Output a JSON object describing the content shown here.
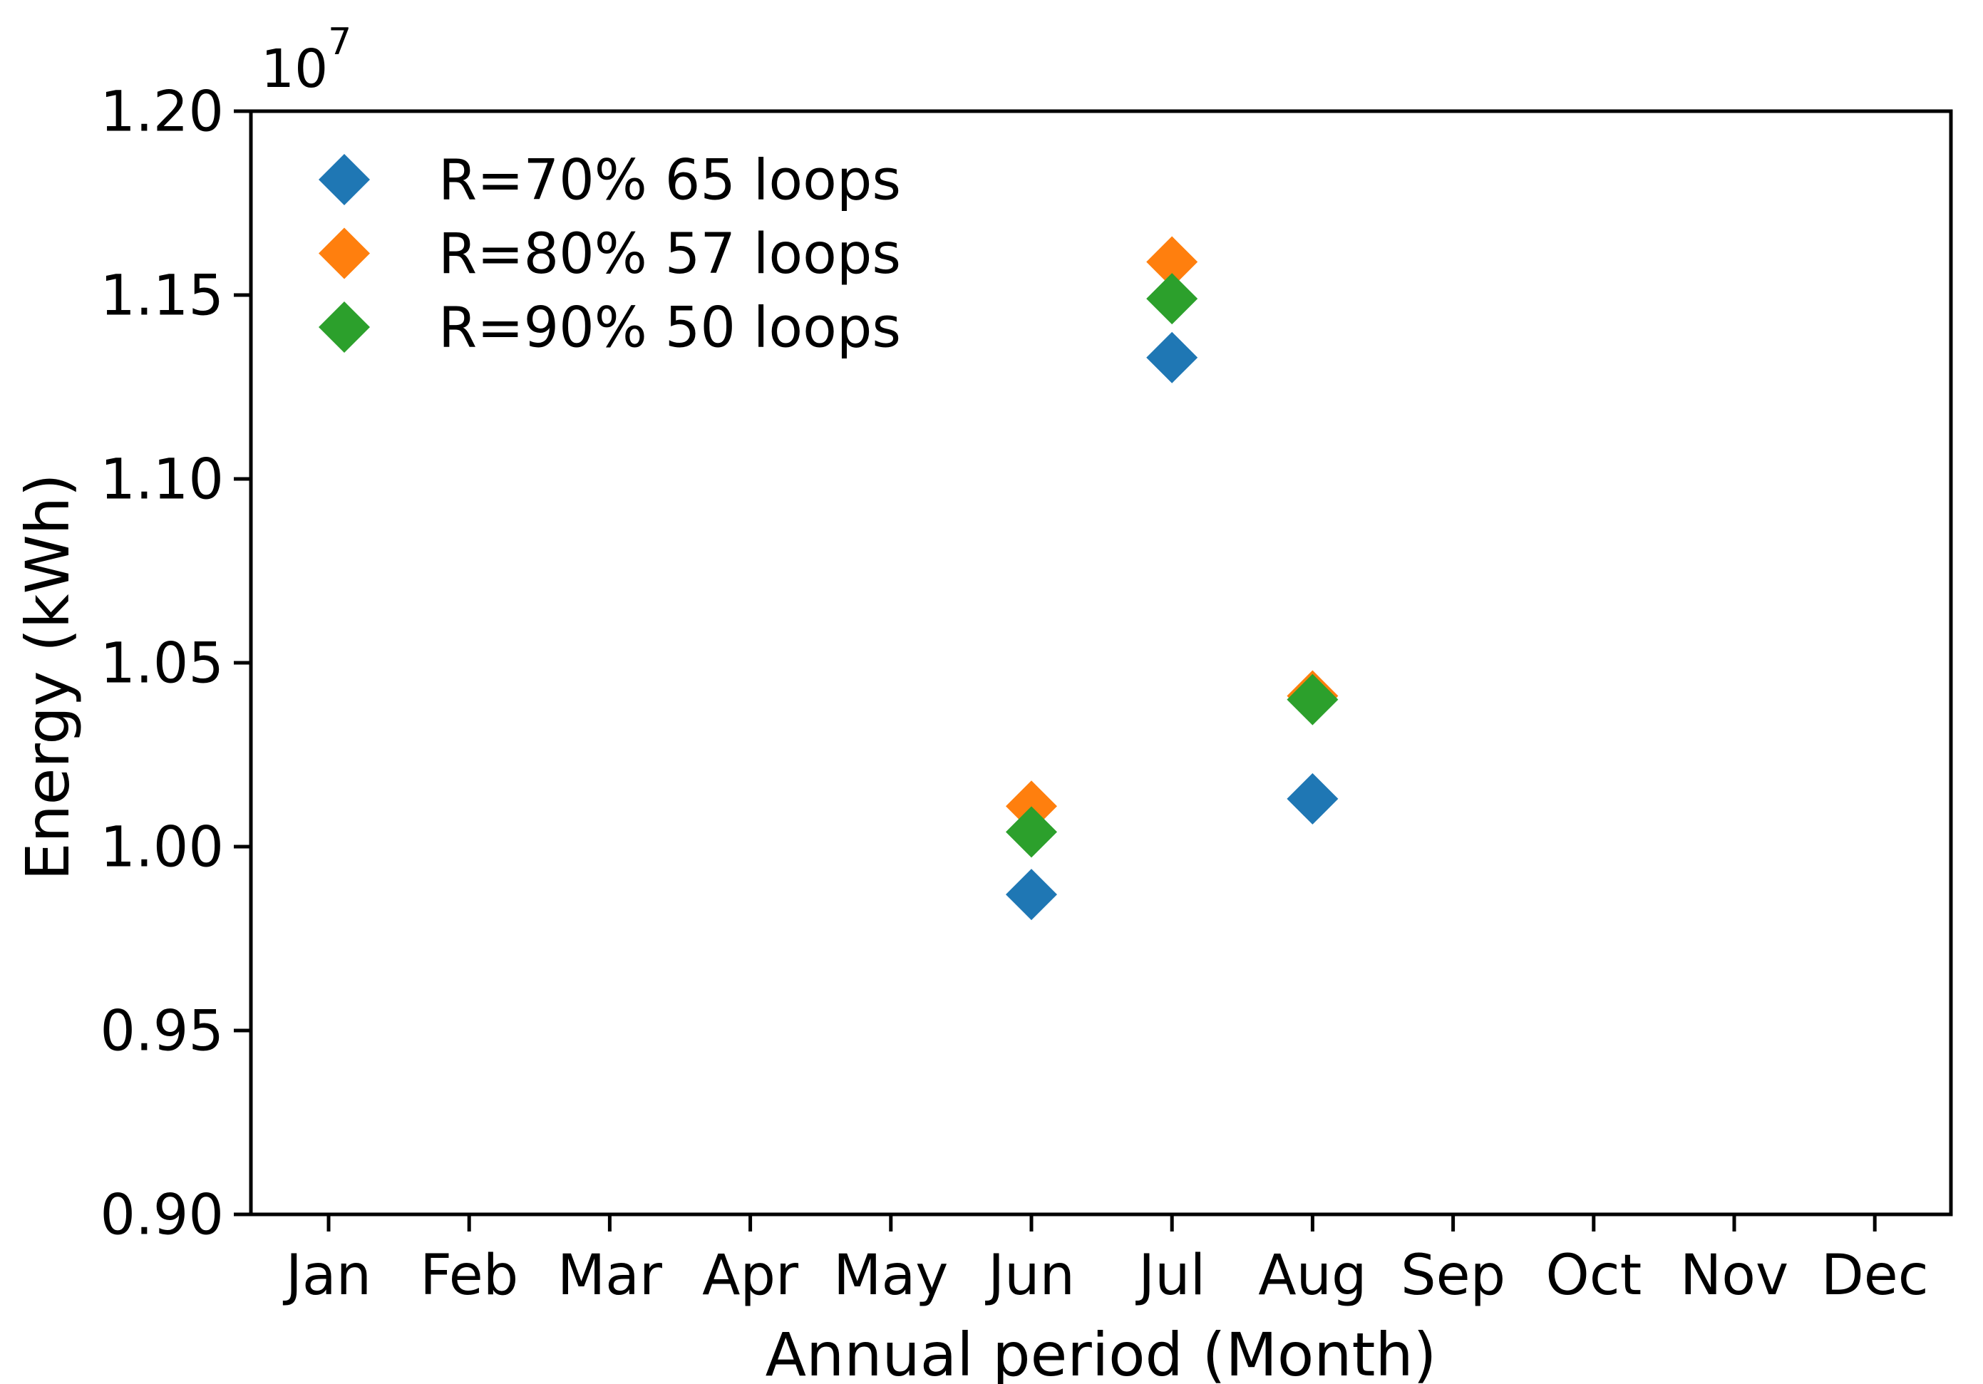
{
  "figure": {
    "background": "#ffffff",
    "description": "Scatter plot of monthly energy for three recovery-ratio cases"
  },
  "chart_data": {
    "type": "scatter",
    "title": "",
    "xlabel": "Annual period (Month)",
    "ylabel": "Energy (kWh)",
    "offset_base": "10",
    "offset_exponent": "7",
    "value_units": "values are in units of 10^7 kWh",
    "categories": [
      "Jan",
      "Feb",
      "Mar",
      "Apr",
      "May",
      "Jun",
      "Jul",
      "Aug",
      "Sep",
      "Oct",
      "Nov",
      "Dec"
    ],
    "ytick_labels": [
      "0.90",
      "0.95",
      "1.00",
      "1.05",
      "1.10",
      "1.15",
      "1.20"
    ],
    "ytick_values": [
      0.9,
      0.95,
      1.0,
      1.05,
      1.1,
      1.15,
      1.2
    ],
    "ylim": [
      0.9,
      1.2
    ],
    "grid": false,
    "marker": "diamond",
    "legend": {
      "position": "upper-left",
      "frame": false
    },
    "series": [
      {
        "name": "R=70% 65 loops",
        "color": "#1f77b4",
        "points": [
          [
            "Jun",
            0.987
          ],
          [
            "Jul",
            1.133
          ],
          [
            "Aug",
            1.013
          ]
        ]
      },
      {
        "name": "R=80% 57 loops",
        "color": "#ff7f0e",
        "points": [
          [
            "Jun",
            1.011
          ],
          [
            "Jul",
            1.159
          ],
          [
            "Aug",
            1.041
          ]
        ]
      },
      {
        "name": "R=90% 50 loops",
        "color": "#2ca02c",
        "points": [
          [
            "Jun",
            1.004
          ],
          [
            "Jul",
            1.149
          ],
          [
            "Aug",
            1.04
          ]
        ]
      }
    ]
  }
}
